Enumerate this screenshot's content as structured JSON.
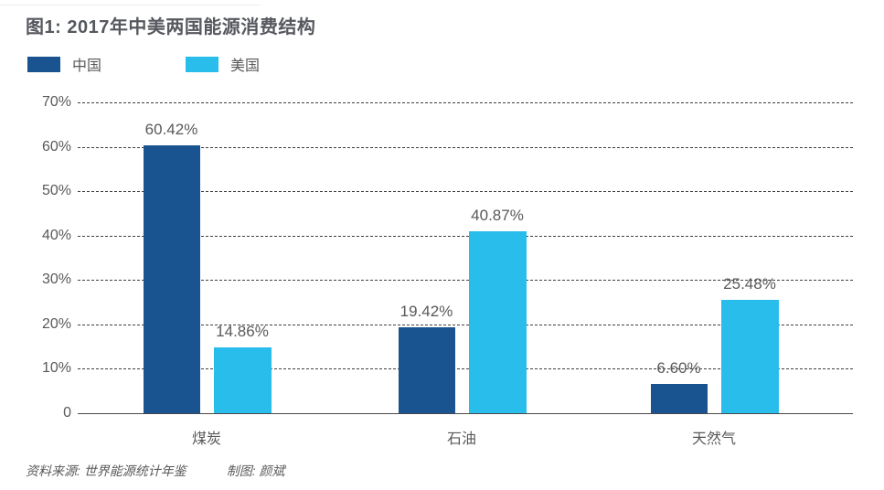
{
  "header": {
    "title": "图1: 2017年中美两国能源消费结构"
  },
  "legend": [
    {
      "label": "中国",
      "color": "#1a5490"
    },
    {
      "label": "美国",
      "color": "#29bdeb"
    }
  ],
  "chart_data": {
    "type": "bar",
    "title": "图1: 2017年中美两国能源消费结构",
    "categories": [
      "煤炭",
      "石油",
      "天然气"
    ],
    "series": [
      {
        "name": "中国",
        "color": "#1a5490",
        "values": [
          60.42,
          19.42,
          6.6
        ],
        "value_labels": [
          "60.42%",
          "19.42%",
          "6.60%"
        ]
      },
      {
        "name": "美国",
        "color": "#29bdeb",
        "values": [
          14.86,
          40.87,
          25.48
        ],
        "value_labels": [
          "14.86%",
          "40.87%",
          "25.48%"
        ]
      }
    ],
    "xlabel": "",
    "ylabel": "",
    "ylim": [
      0,
      70
    ],
    "yticks": [
      0,
      10,
      20,
      30,
      40,
      50,
      60,
      70
    ],
    "ytick_labels": [
      "0",
      "10%",
      "20%",
      "30%",
      "40%",
      "50%",
      "60%",
      "70%"
    ],
    "grid": "horizontal-dashed",
    "legend_position": "top-left"
  },
  "footer": {
    "source": "资料来源: 世界能源统计年鉴",
    "credit": "制图: 颜斌"
  }
}
